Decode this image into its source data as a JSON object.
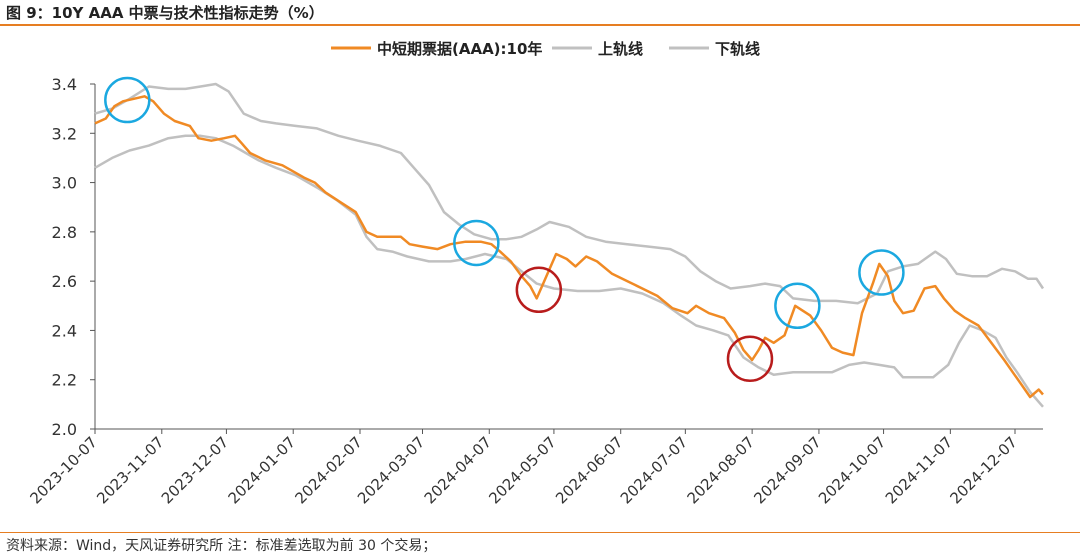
{
  "title": "图 9：10Y AAA 中票与技术性指标走势（%）",
  "source": "资料来源：Wind，天风证券研究所   注：标准差选取为前 30 个交易；",
  "chart_data": {
    "type": "line",
    "x_start": "2023-10-07",
    "x_end": "2024-12-20",
    "ylim": [
      2.0,
      3.4
    ],
    "yticks": [
      "2.0",
      "2.2",
      "2.4",
      "2.6",
      "2.8",
      "3.0",
      "3.2",
      "3.4"
    ],
    "xticks": [
      "2023-10-07",
      "2023-11-07",
      "2023-12-07",
      "2024-01-07",
      "2024-02-07",
      "2024-03-07",
      "2024-04-07",
      "2024-05-07",
      "2024-06-07",
      "2024-07-07",
      "2024-08-07",
      "2024-09-07",
      "2024-10-07",
      "2024-11-07",
      "2024-12-07"
    ],
    "grid": false,
    "legend_position": "top",
    "series": [
      {
        "name": "中短期票据(AAA):10年",
        "color": "#F08A24",
        "points": [
          [
            "2023-10-07",
            3.24
          ],
          [
            "2023-10-12",
            3.26
          ],
          [
            "2023-10-16",
            3.31
          ],
          [
            "2023-10-20",
            3.33
          ],
          [
            "2023-10-25",
            3.34
          ],
          [
            "2023-10-30",
            3.35
          ],
          [
            "2023-11-03",
            3.33
          ],
          [
            "2023-11-08",
            3.28
          ],
          [
            "2023-11-13",
            3.25
          ],
          [
            "2023-11-20",
            3.23
          ],
          [
            "2023-11-24",
            3.18
          ],
          [
            "2023-11-30",
            3.17
          ],
          [
            "2023-12-06",
            3.18
          ],
          [
            "2023-12-11",
            3.19
          ],
          [
            "2023-12-14",
            3.16
          ],
          [
            "2023-12-18",
            3.12
          ],
          [
            "2023-12-25",
            3.09
          ],
          [
            "2024-01-02",
            3.07
          ],
          [
            "2024-01-08",
            3.04
          ],
          [
            "2024-01-12",
            3.02
          ],
          [
            "2024-01-17",
            3.0
          ],
          [
            "2024-01-22",
            2.96
          ],
          [
            "2024-01-29",
            2.92
          ],
          [
            "2024-02-05",
            2.88
          ],
          [
            "2024-02-10",
            2.8
          ],
          [
            "2024-02-15",
            2.78
          ],
          [
            "2024-02-21",
            2.78
          ],
          [
            "2024-02-26",
            2.78
          ],
          [
            "2024-03-01",
            2.75
          ],
          [
            "2024-03-07",
            2.74
          ],
          [
            "2024-03-14",
            2.73
          ],
          [
            "2024-03-20",
            2.75
          ],
          [
            "2024-03-27",
            2.76
          ],
          [
            "2024-04-03",
            2.76
          ],
          [
            "2024-04-08",
            2.75
          ],
          [
            "2024-04-12",
            2.72
          ],
          [
            "2024-04-17",
            2.68
          ],
          [
            "2024-04-22",
            2.62
          ],
          [
            "2024-04-26",
            2.58
          ],
          [
            "2024-04-29",
            2.53
          ],
          [
            "2024-05-03",
            2.61
          ],
          [
            "2024-05-08",
            2.71
          ],
          [
            "2024-05-13",
            2.69
          ],
          [
            "2024-05-17",
            2.66
          ],
          [
            "2024-05-22",
            2.7
          ],
          [
            "2024-05-27",
            2.68
          ],
          [
            "2024-06-03",
            2.63
          ],
          [
            "2024-06-10",
            2.6
          ],
          [
            "2024-06-17",
            2.57
          ],
          [
            "2024-06-24",
            2.54
          ],
          [
            "2024-07-01",
            2.49
          ],
          [
            "2024-07-08",
            2.47
          ],
          [
            "2024-07-12",
            2.5
          ],
          [
            "2024-07-18",
            2.47
          ],
          [
            "2024-07-25",
            2.45
          ],
          [
            "2024-07-30",
            2.39
          ],
          [
            "2024-08-03",
            2.32
          ],
          [
            "2024-08-07",
            2.28
          ],
          [
            "2024-08-10",
            2.32
          ],
          [
            "2024-08-13",
            2.37
          ],
          [
            "2024-08-17",
            2.35
          ],
          [
            "2024-08-22",
            2.38
          ],
          [
            "2024-08-27",
            2.5
          ],
          [
            "2024-09-03",
            2.46
          ],
          [
            "2024-09-08",
            2.4
          ],
          [
            "2024-09-13",
            2.33
          ],
          [
            "2024-09-18",
            2.31
          ],
          [
            "2024-09-23",
            2.3
          ],
          [
            "2024-09-27",
            2.47
          ],
          [
            "2024-10-02",
            2.59
          ],
          [
            "2024-10-05",
            2.67
          ],
          [
            "2024-10-09",
            2.62
          ],
          [
            "2024-10-12",
            2.52
          ],
          [
            "2024-10-16",
            2.47
          ],
          [
            "2024-10-21",
            2.48
          ],
          [
            "2024-10-26",
            2.57
          ],
          [
            "2024-10-31",
            2.58
          ],
          [
            "2024-11-04",
            2.53
          ],
          [
            "2024-11-09",
            2.48
          ],
          [
            "2024-11-14",
            2.45
          ],
          [
            "2024-11-20",
            2.42
          ],
          [
            "2024-11-26",
            2.35
          ],
          [
            "2024-12-02",
            2.28
          ],
          [
            "2024-12-06",
            2.23
          ],
          [
            "2024-12-10",
            2.18
          ],
          [
            "2024-12-14",
            2.13
          ],
          [
            "2024-12-18",
            2.16
          ],
          [
            "2024-12-20",
            2.14
          ]
        ]
      },
      {
        "name": "上轨线",
        "color": "#C0C0C0",
        "points": [
          [
            "2023-10-07",
            3.28
          ],
          [
            "2023-10-15",
            3.3
          ],
          [
            "2023-10-23",
            3.34
          ],
          [
            "2023-11-01",
            3.39
          ],
          [
            "2023-11-10",
            3.38
          ],
          [
            "2023-11-18",
            3.38
          ],
          [
            "2023-11-25",
            3.39
          ],
          [
            "2023-12-02",
            3.4
          ],
          [
            "2023-12-08",
            3.37
          ],
          [
            "2023-12-15",
            3.28
          ],
          [
            "2023-12-23",
            3.25
          ],
          [
            "2023-12-30",
            3.24
          ],
          [
            "2024-01-08",
            3.23
          ],
          [
            "2024-01-18",
            3.22
          ],
          [
            "2024-01-28",
            3.19
          ],
          [
            "2024-02-06",
            3.17
          ],
          [
            "2024-02-16",
            3.15
          ],
          [
            "2024-02-26",
            3.12
          ],
          [
            "2024-03-03",
            3.06
          ],
          [
            "2024-03-10",
            2.99
          ],
          [
            "2024-03-17",
            2.88
          ],
          [
            "2024-03-24",
            2.83
          ],
          [
            "2024-03-31",
            2.79
          ],
          [
            "2024-04-08",
            2.77
          ],
          [
            "2024-04-15",
            2.77
          ],
          [
            "2024-04-22",
            2.78
          ],
          [
            "2024-04-29",
            2.81
          ],
          [
            "2024-05-05",
            2.84
          ],
          [
            "2024-05-14",
            2.82
          ],
          [
            "2024-05-22",
            2.78
          ],
          [
            "2024-05-31",
            2.76
          ],
          [
            "2024-06-10",
            2.75
          ],
          [
            "2024-06-20",
            2.74
          ],
          [
            "2024-06-30",
            2.73
          ],
          [
            "2024-07-07",
            2.7
          ],
          [
            "2024-07-14",
            2.64
          ],
          [
            "2024-07-21",
            2.6
          ],
          [
            "2024-07-28",
            2.57
          ],
          [
            "2024-08-06",
            2.58
          ],
          [
            "2024-08-13",
            2.59
          ],
          [
            "2024-08-20",
            2.58
          ],
          [
            "2024-08-26",
            2.53
          ],
          [
            "2024-09-05",
            2.52
          ],
          [
            "2024-09-15",
            2.52
          ],
          [
            "2024-09-25",
            2.51
          ],
          [
            "2024-10-04",
            2.55
          ],
          [
            "2024-10-09",
            2.64
          ],
          [
            "2024-10-16",
            2.66
          ],
          [
            "2024-10-23",
            2.67
          ],
          [
            "2024-10-31",
            2.72
          ],
          [
            "2024-11-05",
            2.69
          ],
          [
            "2024-11-10",
            2.63
          ],
          [
            "2024-11-17",
            2.62
          ],
          [
            "2024-11-24",
            2.62
          ],
          [
            "2024-12-01",
            2.65
          ],
          [
            "2024-12-07",
            2.64
          ],
          [
            "2024-12-13",
            2.61
          ],
          [
            "2024-12-17",
            2.61
          ],
          [
            "2024-12-20",
            2.57
          ]
        ]
      },
      {
        "name": "下轨线",
        "color": "#C0C0C0",
        "points": [
          [
            "2023-10-07",
            3.06
          ],
          [
            "2023-10-15",
            3.1
          ],
          [
            "2023-10-23",
            3.13
          ],
          [
            "2023-11-01",
            3.15
          ],
          [
            "2023-11-10",
            3.18
          ],
          [
            "2023-11-18",
            3.19
          ],
          [
            "2023-11-25",
            3.19
          ],
          [
            "2023-12-02",
            3.18
          ],
          [
            "2023-12-10",
            3.15
          ],
          [
            "2023-12-16",
            3.12
          ],
          [
            "2023-12-22",
            3.09
          ],
          [
            "2023-12-30",
            3.06
          ],
          [
            "2024-01-08",
            3.03
          ],
          [
            "2024-01-18",
            2.98
          ],
          [
            "2024-01-27",
            2.93
          ],
          [
            "2024-02-05",
            2.87
          ],
          [
            "2024-02-10",
            2.78
          ],
          [
            "2024-02-15",
            2.73
          ],
          [
            "2024-02-22",
            2.72
          ],
          [
            "2024-02-29",
            2.7
          ],
          [
            "2024-03-10",
            2.68
          ],
          [
            "2024-03-20",
            2.68
          ],
          [
            "2024-03-27",
            2.69
          ],
          [
            "2024-04-05",
            2.71
          ],
          [
            "2024-04-15",
            2.69
          ],
          [
            "2024-04-22",
            2.64
          ],
          [
            "2024-04-29",
            2.59
          ],
          [
            "2024-05-07",
            2.57
          ],
          [
            "2024-05-18",
            2.56
          ],
          [
            "2024-05-28",
            2.56
          ],
          [
            "2024-06-07",
            2.57
          ],
          [
            "2024-06-17",
            2.55
          ],
          [
            "2024-06-27",
            2.51
          ],
          [
            "2024-07-05",
            2.46
          ],
          [
            "2024-07-12",
            2.42
          ],
          [
            "2024-07-20",
            2.4
          ],
          [
            "2024-07-27",
            2.38
          ],
          [
            "2024-08-03",
            2.29
          ],
          [
            "2024-08-10",
            2.25
          ],
          [
            "2024-08-17",
            2.22
          ],
          [
            "2024-08-26",
            2.23
          ],
          [
            "2024-09-05",
            2.23
          ],
          [
            "2024-09-13",
            2.23
          ],
          [
            "2024-09-21",
            2.26
          ],
          [
            "2024-09-28",
            2.27
          ],
          [
            "2024-10-05",
            2.26
          ],
          [
            "2024-10-12",
            2.25
          ],
          [
            "2024-10-16",
            2.21
          ],
          [
            "2024-10-23",
            2.21
          ],
          [
            "2024-10-30",
            2.21
          ],
          [
            "2024-11-06",
            2.26
          ],
          [
            "2024-11-11",
            2.35
          ],
          [
            "2024-11-16",
            2.42
          ],
          [
            "2024-11-22",
            2.4
          ],
          [
            "2024-11-28",
            2.37
          ],
          [
            "2024-12-03",
            2.29
          ],
          [
            "2024-12-08",
            2.23
          ],
          [
            "2024-12-14",
            2.15
          ],
          [
            "2024-12-20",
            2.09
          ]
        ]
      }
    ],
    "markers": [
      {
        "type": "circle",
        "color": "#1BA8E0",
        "x": "2023-10-22",
        "y": 3.335
      },
      {
        "type": "circle",
        "color": "#1BA8E0",
        "x": "2024-04-01",
        "y": 2.755
      },
      {
        "type": "circle",
        "color": "#B81C1C",
        "x": "2024-04-30",
        "y": 2.565
      },
      {
        "type": "circle",
        "color": "#B81C1C",
        "x": "2024-08-06",
        "y": 2.285
      },
      {
        "type": "circle",
        "color": "#1BA8E0",
        "x": "2024-08-28",
        "y": 2.5
      },
      {
        "type": "circle",
        "color": "#1BA8E0",
        "x": "2024-10-06",
        "y": 2.635
      }
    ]
  }
}
